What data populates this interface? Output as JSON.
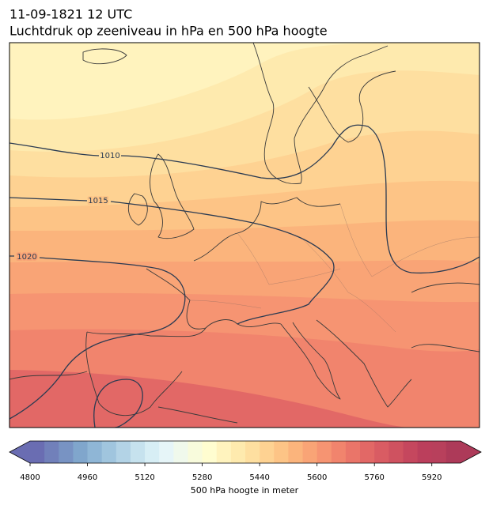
{
  "header": {
    "title_line1": "11-09-1821 12 UTC",
    "title_line2": "Luchtdruk op zeeniveau in hPa en 500 hPa hoogte"
  },
  "map": {
    "isobars": [
      {
        "level": 1010
      },
      {
        "level": 1015
      },
      {
        "level": 1020
      }
    ]
  },
  "colorbar": {
    "label": "500 hPa hoogte in meter",
    "lim": [
      4800,
      6000
    ],
    "ticks": [
      4800,
      4960,
      5120,
      5280,
      5440,
      5600,
      5760,
      5920
    ],
    "extend": "both",
    "colors": [
      "#6a6db2",
      "#7180ba",
      "#7893c3",
      "#80a6cc",
      "#8fb6d6",
      "#a0c5de",
      "#b3d3e6",
      "#c6e2ee",
      "#d7eef5",
      "#e6f5f8",
      "#f0f9ec",
      "#f8fbdc",
      "#fffdd0",
      "#fff3be",
      "#feeaae",
      "#fedfa0",
      "#fed292",
      "#fdc486",
      "#fbb47c",
      "#f9a476",
      "#f69472",
      "#f1846d",
      "#ea7569",
      "#e26866",
      "#d95c63",
      "#cf5260",
      "#c5475e",
      "#bb3f5c",
      "#b8405c",
      "#ad3a59"
    ]
  }
}
